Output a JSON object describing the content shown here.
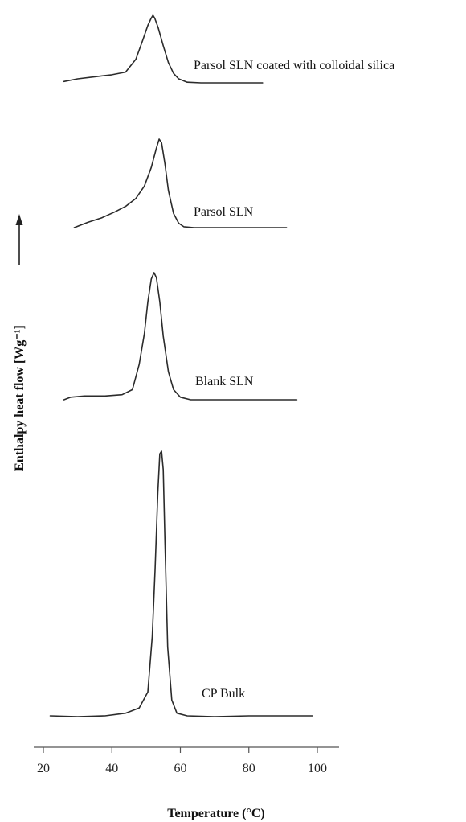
{
  "chart_data": {
    "type": "line",
    "title": "",
    "xlabel": "Temperature (°C)",
    "ylabel": "Enthalpy heat flow [Wg⁻¹]",
    "xlim": [
      20,
      100
    ],
    "xticks": [
      20,
      40,
      60,
      80,
      100
    ],
    "y_units": "relative heat flow (offset, no scale shown)",
    "grid": false,
    "legend": "none (series labeled directly on curves)",
    "series": [
      {
        "name": "Parsol SLN coated with colloidal silica",
        "x": [
          26,
          30,
          35,
          40,
          44,
          47,
          49,
          50.5,
          51.5,
          52,
          52.5,
          53.5,
          55,
          56.5,
          58,
          59.5,
          62,
          66,
          72,
          78,
          84
        ],
        "y": [
          0.02,
          0.06,
          0.09,
          0.12,
          0.16,
          0.35,
          0.63,
          0.85,
          0.96,
          1.0,
          0.96,
          0.82,
          0.55,
          0.3,
          0.14,
          0.06,
          0.01,
          0.0,
          0.0,
          0.0,
          0.0
        ]
      },
      {
        "name": "Parsol SLN",
        "x": [
          29,
          33,
          37,
          41,
          44,
          47,
          49.5,
          51.5,
          53,
          53.8,
          54.5,
          55.5,
          56.5,
          58,
          59.5,
          61,
          64,
          70,
          78,
          86,
          91
        ],
        "y": [
          0.0,
          0.06,
          0.11,
          0.18,
          0.24,
          0.33,
          0.47,
          0.68,
          0.9,
          1.0,
          0.96,
          0.72,
          0.42,
          0.16,
          0.05,
          0.01,
          0.0,
          0.0,
          0.0,
          0.0,
          0.0
        ]
      },
      {
        "name": "Blank SLN",
        "x": [
          26,
          28,
          32,
          38,
          43,
          46,
          48,
          49.5,
          50.5,
          51.5,
          52.3,
          53,
          54,
          55,
          56.5,
          58,
          60,
          63,
          70,
          80,
          94
        ],
        "y": [
          0.0,
          0.02,
          0.03,
          0.03,
          0.04,
          0.08,
          0.28,
          0.52,
          0.77,
          0.95,
          1.0,
          0.96,
          0.77,
          0.5,
          0.22,
          0.08,
          0.02,
          0.0,
          0.0,
          0.0,
          0.0
        ]
      },
      {
        "name": "CP Bulk",
        "x": [
          22,
          30,
          38,
          44,
          48,
          50.5,
          51.8,
          52.6,
          53.4,
          54,
          54.5,
          55,
          55.5,
          56.3,
          57.5,
          59,
          62,
          70,
          80,
          90,
          98.5
        ],
        "y": [
          0.0,
          -0.003,
          0.0,
          0.01,
          0.03,
          0.09,
          0.3,
          0.55,
          0.84,
          0.99,
          1.0,
          0.93,
          0.66,
          0.26,
          0.06,
          0.01,
          0.0,
          -0.003,
          0.0,
          0.0,
          0.0
        ]
      }
    ]
  }
}
